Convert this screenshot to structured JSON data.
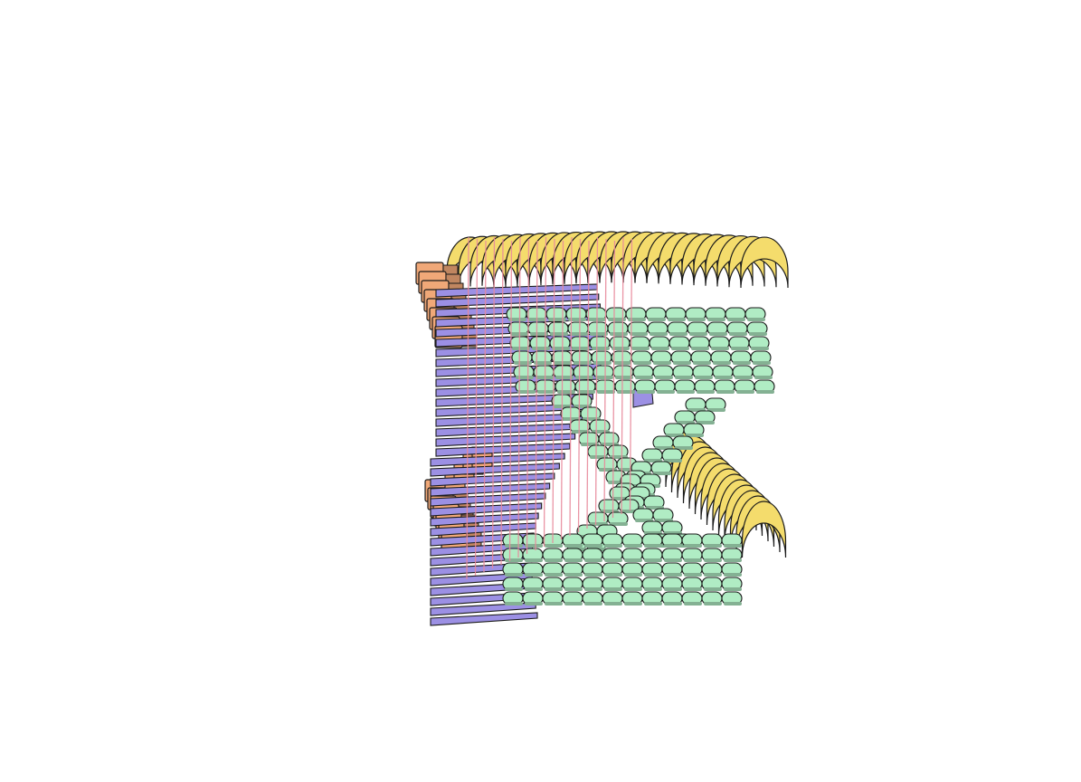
{
  "scene": {
    "kind": "3d-sculpture-render",
    "background": "#ffffff",
    "palette": {
      "peach": "#f0a878",
      "yellow": "#f4dc6c",
      "violet": "#9c90e4",
      "mint": "#b0ecc4",
      "rod": "#e88a9c",
      "edge": "#1a1a1a"
    },
    "layer_sets": [
      {
        "name": "peach-fins",
        "color": "peach"
      },
      {
        "name": "yellow-arcs",
        "color": "yellow"
      },
      {
        "name": "violet-sheets",
        "color": "violet"
      },
      {
        "name": "mint-lattice",
        "color": "mint"
      },
      {
        "name": "pink-rods",
        "color": "rod"
      }
    ]
  }
}
